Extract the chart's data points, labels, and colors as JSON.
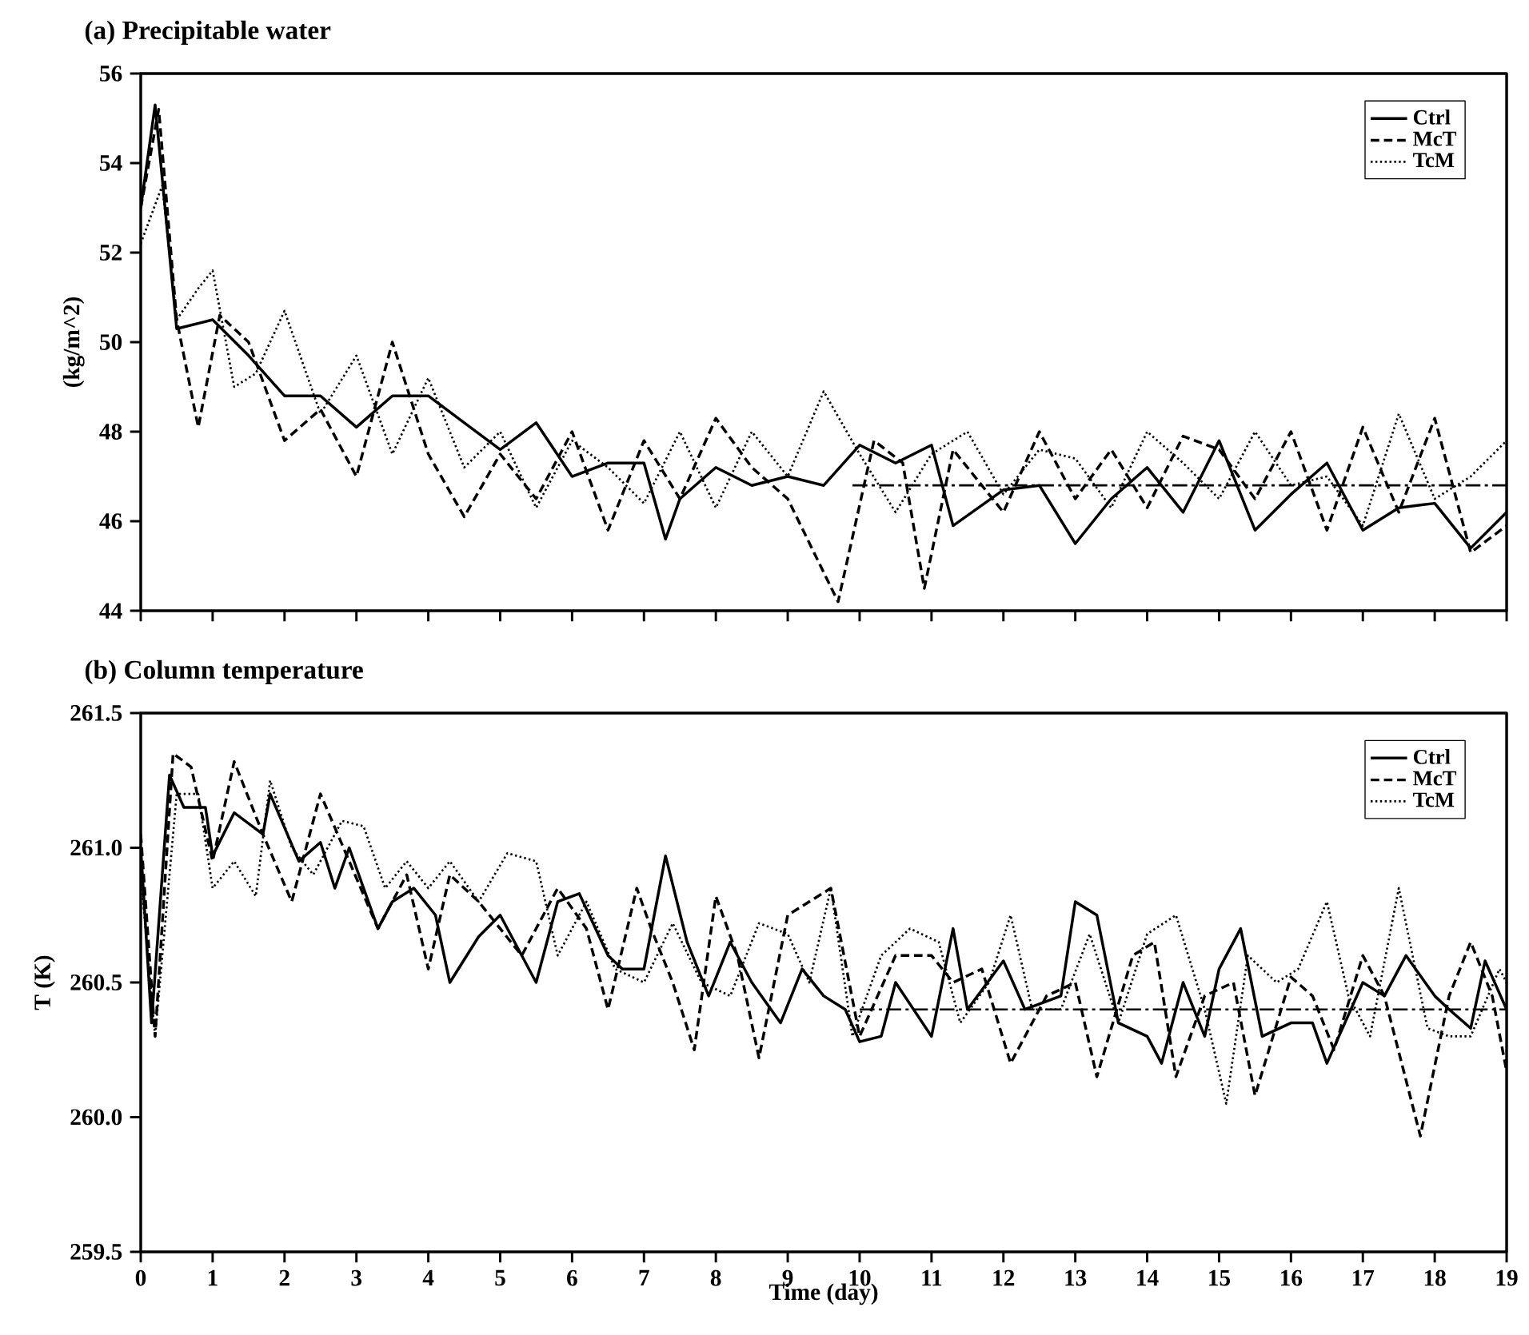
{
  "chart_data": [
    {
      "type": "line",
      "title": "(a)  Precipitable water",
      "ylabel": "(kg/m^2)",
      "xlim": [
        0,
        19
      ],
      "xticks": [
        0,
        1,
        2,
        3,
        4,
        5,
        6,
        7,
        8,
        9,
        10,
        11,
        12,
        13,
        14,
        15,
        16,
        17,
        18,
        19
      ],
      "ylim": [
        44,
        56
      ],
      "yticks": [
        44,
        46,
        48,
        50,
        52,
        54,
        56
      ],
      "tick_labels": "y",
      "legend": "top right",
      "series": [
        {
          "name": "Ctrl",
          "color": "#000000",
          "line_style": "solid",
          "x": [
            0,
            0.2,
            0.5,
            1,
            1.5,
            2,
            2.5,
            3,
            3.5,
            4,
            4.5,
            5,
            5.5,
            6,
            6.5,
            7,
            7.3,
            7.5,
            8,
            8.5,
            9,
            9.5,
            10,
            10.5,
            11,
            11.3,
            12,
            12.5,
            13,
            13.5,
            14,
            14.5,
            15,
            15.5,
            16,
            16.5,
            17,
            17.5,
            18,
            18.5,
            19
          ],
          "values": [
            53,
            55.3,
            50.3,
            50.5,
            49.7,
            48.8,
            48.8,
            48.1,
            48.8,
            48.8,
            48.2,
            47.6,
            48.2,
            47,
            47.3,
            47.3,
            45.6,
            46.5,
            47.2,
            46.8,
            47,
            46.8,
            47.7,
            47.3,
            47.7,
            45.9,
            46.7,
            46.8,
            45.5,
            46.5,
            47.2,
            46.2,
            47.8,
            45.8,
            46.6,
            47.3,
            45.8,
            46.3,
            46.4,
            45.4,
            46.2
          ]
        },
        {
          "name": "McT",
          "color": "#000000",
          "line_style": "dashed",
          "x": [
            0,
            0.25,
            0.5,
            0.8,
            1.1,
            1.5,
            2,
            2.5,
            3,
            3.5,
            4,
            4.5,
            5,
            5.5,
            6,
            6.5,
            7,
            7.5,
            8,
            8.5,
            9,
            9.7,
            10.2,
            10.6,
            10.9,
            11.3,
            12,
            12.5,
            13,
            13.5,
            14,
            14.5,
            15,
            15.5,
            16,
            16.5,
            17,
            17.5,
            18,
            18.5,
            19
          ],
          "values": [
            53,
            55.2,
            50.5,
            48.1,
            50.6,
            50,
            47.8,
            48.5,
            47,
            50,
            47.5,
            46.1,
            47.5,
            46.5,
            48,
            45.8,
            47.8,
            46.5,
            48.3,
            47.2,
            46.5,
            44.2,
            47.8,
            47.3,
            44.5,
            47.6,
            46.2,
            48,
            46.5,
            47.6,
            46.3,
            47.9,
            47.6,
            46.5,
            48,
            45.8,
            48.1,
            46.2,
            48.3,
            45.3,
            45.9
          ]
        },
        {
          "name": "TcM",
          "color": "#000000",
          "line_style": "dotted",
          "x": [
            0,
            0.3,
            0.5,
            0.8,
            1,
            1.3,
            1.6,
            2,
            2.5,
            3,
            3.5,
            4,
            4.5,
            5,
            5.5,
            6,
            6.5,
            7,
            7.5,
            8,
            8.5,
            9,
            9.5,
            10,
            10.5,
            11,
            11.5,
            12,
            12.5,
            13,
            13.5,
            14,
            14.5,
            15,
            15.5,
            16,
            16.5,
            17,
            17.5,
            18,
            18.5,
            19
          ],
          "values": [
            52.2,
            53.5,
            50.5,
            51.2,
            51.6,
            49,
            49.3,
            50.7,
            48.4,
            49.7,
            47.5,
            49.2,
            47.2,
            48,
            46.3,
            47.8,
            47.2,
            46.4,
            48,
            46.3,
            48,
            47,
            48.9,
            47.5,
            46.2,
            47.5,
            48,
            46.6,
            47.6,
            47.4,
            46.3,
            48,
            47.3,
            46.5,
            48,
            46.8,
            47,
            45.9,
            48.4,
            46.5,
            47,
            47.8
          ]
        },
        {
          "color": "#000000",
          "line_style": "dashdot",
          "x": [
            9.9,
            19
          ],
          "values": [
            46.8,
            46.8
          ]
        }
      ]
    },
    {
      "type": "line",
      "title": "(b) Column temperature",
      "xlabel": "Time (day)",
      "ylabel": "T (K)",
      "xlim": [
        0,
        19
      ],
      "xticks": [
        0,
        1,
        2,
        3,
        4,
        5,
        6,
        7,
        8,
        9,
        10,
        11,
        12,
        13,
        14,
        15,
        16,
        17,
        18,
        19
      ],
      "ylim": [
        259.5,
        261.5
      ],
      "yticks": [
        {
          "value": 259.5,
          "label": "259.5"
        },
        {
          "value": 260,
          "label": "260.0"
        },
        {
          "value": 260.5,
          "label": "260.5"
        },
        {
          "value": 261,
          "label": "261.0"
        },
        {
          "value": 261.5,
          "label": "261.5"
        }
      ],
      "legend": "top right",
      "series": [
        {
          "name": "Ctrl",
          "color": "#000000",
          "line_style": "solid",
          "x": [
            0,
            0.15,
            0.4,
            0.6,
            0.9,
            1,
            1.3,
            1.7,
            1.8,
            2.2,
            2.5,
            2.7,
            2.9,
            3.3,
            3.5,
            3.8,
            4.1,
            4.3,
            4.7,
            5,
            5.5,
            5.8,
            6.1,
            6.5,
            6.7,
            7,
            7.3,
            7.6,
            7.9,
            8.2,
            8.5,
            8.9,
            9.2,
            9.5,
            9.8,
            10,
            10.3,
            10.5,
            11,
            11.3,
            11.5,
            12,
            12.3,
            12.8,
            13,
            13.3,
            13.6,
            14,
            14.2,
            14.5,
            14.8,
            15,
            15.3,
            15.6,
            16,
            16.3,
            16.5,
            17,
            17.3,
            17.6,
            18,
            18.2,
            18.5,
            18.7,
            19
          ],
          "values": [
            261,
            260.35,
            261.27,
            261.15,
            261.15,
            260.97,
            261.13,
            261.05,
            261.2,
            260.95,
            261.02,
            260.85,
            261,
            260.7,
            260.8,
            260.85,
            260.75,
            260.5,
            260.67,
            260.75,
            260.5,
            260.8,
            260.83,
            260.6,
            260.55,
            260.55,
            260.97,
            260.65,
            260.45,
            260.65,
            260.5,
            260.35,
            260.55,
            260.45,
            260.4,
            260.28,
            260.3,
            260.5,
            260.3,
            260.7,
            260.4,
            260.58,
            260.4,
            260.45,
            260.8,
            260.75,
            260.35,
            260.3,
            260.2,
            260.5,
            260.3,
            260.55,
            260.7,
            260.3,
            260.35,
            260.35,
            260.2,
            260.5,
            260.45,
            260.6,
            260.45,
            260.4,
            260.33,
            260.58,
            260.4
          ]
        },
        {
          "name": "McT",
          "color": "#000000",
          "line_style": "dashed",
          "x": [
            0,
            0.2,
            0.45,
            0.7,
            1,
            1.3,
            1.7,
            2.1,
            2.5,
            2.9,
            3.3,
            3.7,
            4,
            4.3,
            4.7,
            5.3,
            5.8,
            6.2,
            6.5,
            6.9,
            7.1,
            7.4,
            7.7,
            8,
            8.3,
            8.6,
            9,
            9.6,
            10,
            10.5,
            11,
            11.3,
            11.7,
            12.1,
            12.6,
            13,
            13.3,
            13.8,
            14.1,
            14.4,
            14.8,
            15.2,
            15.5,
            16,
            16.3,
            16.6,
            17,
            17.3,
            17.8,
            18.2,
            18.5,
            18.8,
            19
          ],
          "values": [
            261.05,
            260.3,
            261.35,
            261.3,
            260.95,
            261.32,
            261.05,
            260.8,
            261.2,
            260.95,
            260.7,
            260.9,
            260.55,
            260.9,
            260.8,
            260.6,
            260.85,
            260.7,
            260.4,
            260.85,
            260.7,
            260.5,
            260.25,
            260.82,
            260.6,
            260.22,
            260.75,
            260.85,
            260.3,
            260.6,
            260.6,
            260.5,
            260.55,
            260.2,
            260.45,
            260.5,
            260.15,
            260.6,
            260.65,
            260.15,
            260.45,
            260.5,
            260.08,
            260.52,
            260.45,
            260.25,
            260.6,
            260.45,
            259.93,
            260.45,
            260.65,
            260.45,
            260.17
          ]
        },
        {
          "name": "TcM",
          "color": "#000000",
          "line_style": "dotted",
          "x": [
            0,
            0.2,
            0.5,
            0.8,
            1,
            1.3,
            1.6,
            1.8,
            2.1,
            2.4,
            2.8,
            3.1,
            3.4,
            3.7,
            4,
            4.3,
            4.7,
            5.1,
            5.5,
            5.8,
            6.2,
            6.6,
            7,
            7.4,
            7.8,
            8.2,
            8.6,
            9,
            9.3,
            9.6,
            9.9,
            10.3,
            10.7,
            11.1,
            11.4,
            11.8,
            12.1,
            12.4,
            12.8,
            13.2,
            13.6,
            14,
            14.4,
            14.8,
            15.1,
            15.4,
            15.8,
            16.1,
            16.5,
            16.8,
            17.1,
            17.5,
            17.9,
            18.2,
            18.5,
            18.9,
            19
          ],
          "values": [
            260.9,
            260.3,
            261.2,
            261.2,
            260.85,
            260.95,
            260.82,
            261.25,
            261,
            260.9,
            261.1,
            261.08,
            260.85,
            260.95,
            260.85,
            260.95,
            260.8,
            260.98,
            260.95,
            260.6,
            260.8,
            260.55,
            260.5,
            260.72,
            260.5,
            260.45,
            260.72,
            260.68,
            260.5,
            260.85,
            260.3,
            260.6,
            260.7,
            260.65,
            260.35,
            260.5,
            260.75,
            260.4,
            260.4,
            260.68,
            260.35,
            260.68,
            260.75,
            260.4,
            260.05,
            260.6,
            260.5,
            260.55,
            260.8,
            260.45,
            260.3,
            260.85,
            260.33,
            260.3,
            260.3,
            260.55,
            260.5
          ]
        },
        {
          "color": "#000000",
          "line_style": "dashdot",
          "x": [
            10,
            19
          ],
          "values": [
            260.4,
            260.4
          ]
        }
      ]
    }
  ]
}
